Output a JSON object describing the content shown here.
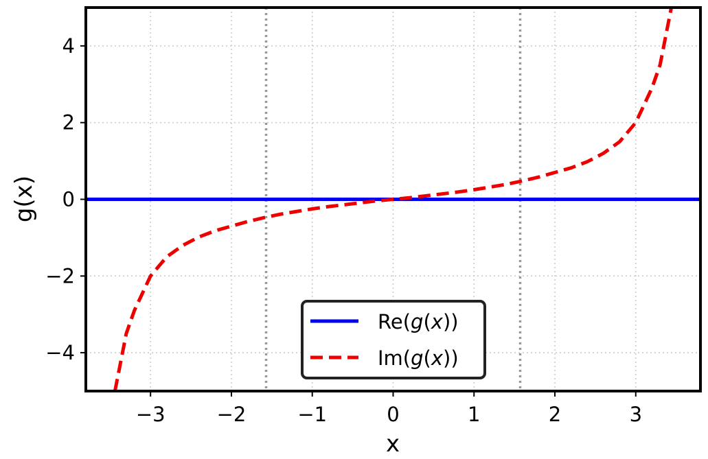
{
  "chart_data": {
    "type": "line",
    "title": "",
    "xlabel": "x",
    "ylabel": "g(x)",
    "xlim": [
      -3.8,
      3.8
    ],
    "ylim": [
      -5,
      5
    ],
    "x_ticks": [
      -3,
      -2,
      -1,
      0,
      1,
      2,
      3
    ],
    "x_tick_labels": [
      "−3",
      "−2",
      "−1",
      "0",
      "1",
      "2",
      "3"
    ],
    "y_ticks": [
      -4,
      -2,
      0,
      2,
      4
    ],
    "y_tick_labels": [
      "−4",
      "−2",
      "0",
      "2",
      "4"
    ],
    "grid": true,
    "vertical_reference_lines": [
      -1.5708,
      1.5708
    ],
    "legend_position": "lower-center",
    "series": [
      {
        "name_parts": [
          "Re(",
          "g",
          "(",
          "x",
          "))"
        ],
        "style": "solid",
        "color": "#0000ee",
        "x": [
          -3.8,
          3.8
        ],
        "y": [
          0,
          0
        ]
      },
      {
        "name_parts": [
          "Im(",
          "g",
          "(",
          "x",
          "))"
        ],
        "style": "dashed",
        "color": "#ee0000",
        "x": [
          -3.44,
          -3.3,
          -3.2,
          -3.1,
          -3.0,
          -2.8,
          -2.6,
          -2.4,
          -2.2,
          -2.0,
          -1.8,
          -1.6,
          -1.4,
          -1.2,
          -1.0,
          -0.8,
          -0.6,
          -0.4,
          -0.2,
          0.0,
          0.2,
          0.4,
          0.6,
          0.8,
          1.0,
          1.2,
          1.4,
          1.6,
          1.8,
          2.0,
          2.2,
          2.4,
          2.6,
          2.8,
          3.0,
          3.1,
          3.2,
          3.3,
          3.44
        ],
        "y": [
          -5.0,
          -3.5,
          -2.9,
          -2.45,
          -2.0,
          -1.5,
          -1.2,
          -0.98,
          -0.82,
          -0.7,
          -0.58,
          -0.48,
          -0.39,
          -0.32,
          -0.25,
          -0.19,
          -0.14,
          -0.09,
          -0.04,
          0.0,
          0.04,
          0.09,
          0.14,
          0.19,
          0.25,
          0.32,
          0.39,
          0.48,
          0.58,
          0.7,
          0.82,
          0.98,
          1.2,
          1.5,
          2.0,
          2.45,
          2.9,
          3.5,
          5.0
        ]
      }
    ]
  }
}
